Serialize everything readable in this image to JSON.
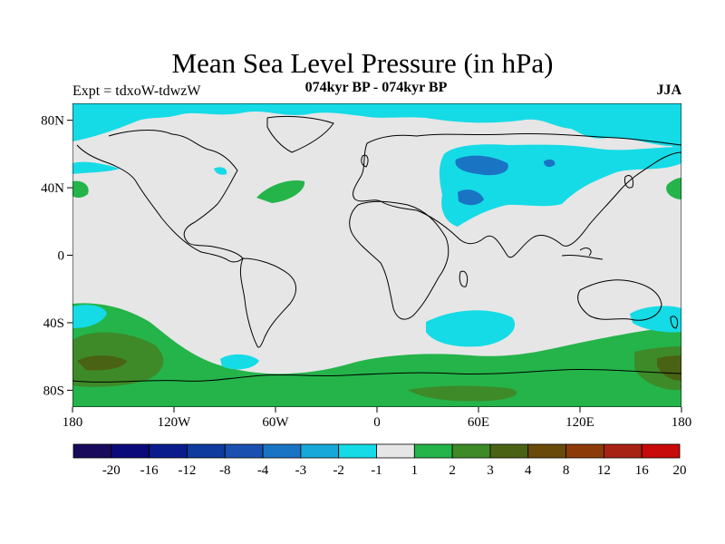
{
  "header": {
    "title": "Mean Sea Level Pressure (in hPa)",
    "left_label": "Expt = tdxoW-tdwzW",
    "center_label": "074kyr BP - 074kyr BP",
    "right_label": "JJA"
  },
  "axes": {
    "lat_ticks": [
      "80N",
      "40N",
      "0",
      "40S",
      "80S"
    ],
    "lon_ticks": [
      "180",
      "120W",
      "60W",
      "0",
      "60E",
      "120E",
      "180"
    ]
  },
  "colorbar": {
    "labels": [
      "-20",
      "-16",
      "-12",
      "-8",
      "-4",
      "-3",
      "-2",
      "-1",
      "1",
      "2",
      "3",
      "4",
      "8",
      "12",
      "16",
      "20"
    ],
    "colors": [
      "#1a0a5c",
      "#0a0a7a",
      "#0a1c8c",
      "#0f3a9e",
      "#1a50b0",
      "#1a74c4",
      "#15a8d8",
      "#15dbe6",
      "#e6e6e6",
      "#24b44a",
      "#3e8a28",
      "#4a6214",
      "#6a4a0a",
      "#8c3a08",
      "#a82214",
      "#c80a0a"
    ]
  },
  "map": {
    "background_color": "#e6e6e6",
    "projection": "cylindrical equidistant",
    "lon_range": [
      -180,
      180
    ],
    "lat_range": [
      -90,
      90
    ]
  }
}
